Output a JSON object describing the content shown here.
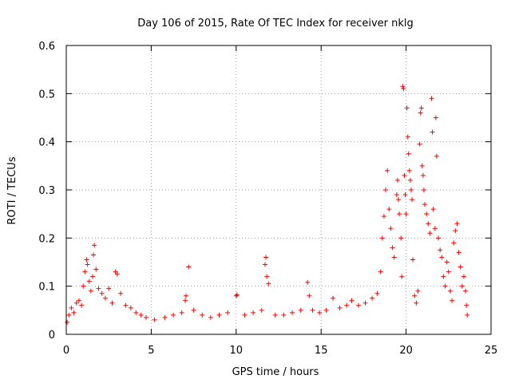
{
  "chart_data": {
    "type": "scatter",
    "title": "Day 106 of 2015, Rate Of TEC Index for receiver nklg",
    "xlabel": "GPS time / hours",
    "ylabel": "ROTI / TECUs",
    "xlim": [
      0,
      25
    ],
    "ylim": [
      0,
      0.6
    ],
    "xticks": [
      0,
      5,
      10,
      15,
      20,
      25
    ],
    "xtick_labels": [
      "0",
      "5",
      "10",
      "15",
      "20",
      "25"
    ],
    "yticks": [
      0,
      0.1,
      0.2,
      0.3,
      0.4,
      0.5,
      0.6
    ],
    "ytick_labels": [
      "0",
      "0.1",
      "0.2",
      "0.3",
      "0.4",
      "0.5",
      "0.6"
    ],
    "grid": true,
    "marker": "+",
    "marker_color": "#ff0000",
    "series": [
      {
        "name": "ROTI",
        "points": [
          [
            0.05,
            0.025
          ],
          [
            0.15,
            0.04
          ],
          [
            0.3,
            0.055
          ],
          [
            0.45,
            0.045
          ],
          [
            0.6,
            0.065
          ],
          [
            0.75,
            0.07
          ],
          [
            0.9,
            0.06
          ],
          [
            1.0,
            0.1
          ],
          [
            1.1,
            0.13
          ],
          [
            1.2,
            0.155
          ],
          [
            1.25,
            0.145
          ],
          [
            1.35,
            0.11
          ],
          [
            1.45,
            0.09
          ],
          [
            1.55,
            0.12
          ],
          [
            1.6,
            0.165
          ],
          [
            1.65,
            0.185
          ],
          [
            1.75,
            0.135
          ],
          [
            1.9,
            0.095
          ],
          [
            2.1,
            0.085
          ],
          [
            2.3,
            0.075
          ],
          [
            2.5,
            0.095
          ],
          [
            2.7,
            0.065
          ],
          [
            2.9,
            0.13
          ],
          [
            3.0,
            0.125
          ],
          [
            3.2,
            0.085
          ],
          [
            3.5,
            0.06
          ],
          [
            3.8,
            0.055
          ],
          [
            4.1,
            0.045
          ],
          [
            4.4,
            0.04
          ],
          [
            4.7,
            0.035
          ],
          [
            5.2,
            0.03
          ],
          [
            5.8,
            0.035
          ],
          [
            6.3,
            0.04
          ],
          [
            6.8,
            0.045
          ],
          [
            7.0,
            0.07
          ],
          [
            7.05,
            0.08
          ],
          [
            7.2,
            0.14
          ],
          [
            7.5,
            0.05
          ],
          [
            8.0,
            0.04
          ],
          [
            8.5,
            0.035
          ],
          [
            9.0,
            0.04
          ],
          [
            9.5,
            0.045
          ],
          [
            10.0,
            0.08
          ],
          [
            10.05,
            0.082
          ],
          [
            10.5,
            0.04
          ],
          [
            11.0,
            0.045
          ],
          [
            11.5,
            0.05
          ],
          [
            11.7,
            0.145
          ],
          [
            11.75,
            0.16
          ],
          [
            11.8,
            0.12
          ],
          [
            11.9,
            0.105
          ],
          [
            12.3,
            0.04
          ],
          [
            12.8,
            0.04
          ],
          [
            13.3,
            0.045
          ],
          [
            13.8,
            0.05
          ],
          [
            14.2,
            0.108
          ],
          [
            14.3,
            0.08
          ],
          [
            14.5,
            0.05
          ],
          [
            14.9,
            0.045
          ],
          [
            15.3,
            0.05
          ],
          [
            15.7,
            0.075
          ],
          [
            16.1,
            0.055
          ],
          [
            16.5,
            0.06
          ],
          [
            16.8,
            0.07
          ],
          [
            17.2,
            0.06
          ],
          [
            17.6,
            0.065
          ],
          [
            18.0,
            0.075
          ],
          [
            18.3,
            0.085
          ],
          [
            18.5,
            0.13
          ],
          [
            18.6,
            0.2
          ],
          [
            18.7,
            0.245
          ],
          [
            18.8,
            0.3
          ],
          [
            18.9,
            0.34
          ],
          [
            19.0,
            0.26
          ],
          [
            19.1,
            0.22
          ],
          [
            19.2,
            0.18
          ],
          [
            19.3,
            0.16
          ],
          [
            19.45,
            0.29
          ],
          [
            19.5,
            0.32
          ],
          [
            19.55,
            0.28
          ],
          [
            19.6,
            0.25
          ],
          [
            19.7,
            0.2
          ],
          [
            19.75,
            0.12
          ],
          [
            19.8,
            0.515
          ],
          [
            19.85,
            0.51
          ],
          [
            19.9,
            0.33
          ],
          [
            19.95,
            0.29
          ],
          [
            20.0,
            0.25
          ],
          [
            20.05,
            0.47
          ],
          [
            20.1,
            0.41
          ],
          [
            20.15,
            0.375
          ],
          [
            20.2,
            0.34
          ],
          [
            20.25,
            0.32
          ],
          [
            20.3,
            0.3
          ],
          [
            20.35,
            0.28
          ],
          [
            20.4,
            0.155
          ],
          [
            20.5,
            0.08
          ],
          [
            20.6,
            0.065
          ],
          [
            20.7,
            0.09
          ],
          [
            20.8,
            0.395
          ],
          [
            20.85,
            0.46
          ],
          [
            20.9,
            0.47
          ],
          [
            20.95,
            0.35
          ],
          [
            21.0,
            0.33
          ],
          [
            21.05,
            0.3
          ],
          [
            21.1,
            0.27
          ],
          [
            21.2,
            0.25
          ],
          [
            21.3,
            0.23
          ],
          [
            21.4,
            0.21
          ],
          [
            21.5,
            0.49
          ],
          [
            21.55,
            0.42
          ],
          [
            21.6,
            0.26
          ],
          [
            21.7,
            0.22
          ],
          [
            21.75,
            0.45
          ],
          [
            21.8,
            0.37
          ],
          [
            21.9,
            0.2
          ],
          [
            22.0,
            0.175
          ],
          [
            22.1,
            0.16
          ],
          [
            22.2,
            0.12
          ],
          [
            22.3,
            0.1
          ],
          [
            22.4,
            0.15
          ],
          [
            22.5,
            0.13
          ],
          [
            22.6,
            0.09
          ],
          [
            22.7,
            0.07
          ],
          [
            22.8,
            0.19
          ],
          [
            22.9,
            0.215
          ],
          [
            23.0,
            0.23
          ],
          [
            23.1,
            0.17
          ],
          [
            23.2,
            0.14
          ],
          [
            23.3,
            0.1
          ],
          [
            23.4,
            0.12
          ],
          [
            23.5,
            0.09
          ],
          [
            23.55,
            0.06
          ],
          [
            23.6,
            0.04
          ]
        ]
      }
    ]
  }
}
